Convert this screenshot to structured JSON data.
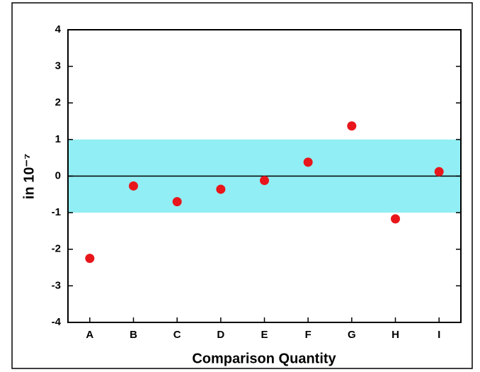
{
  "chart_data": {
    "type": "scatter",
    "xlabel": "Comparison Quantity",
    "ylabel": "in 10⁻⁷",
    "categories": [
      "A",
      "B",
      "C",
      "D",
      "E",
      "F",
      "G",
      "H",
      "I"
    ],
    "series": [
      {
        "color": "#e8161b",
        "values": [
          -2.25,
          -0.27,
          -0.7,
          -0.36,
          -0.12,
          0.38,
          1.37,
          -1.17,
          0.12
        ]
      }
    ],
    "ylim": [
      -4,
      4
    ],
    "yticks": [
      -4,
      -3,
      -2,
      -1,
      0,
      1,
      2,
      3,
      4
    ],
    "band": [
      -1,
      1
    ],
    "band_color": "#91eef4",
    "reference_line": 0
  }
}
